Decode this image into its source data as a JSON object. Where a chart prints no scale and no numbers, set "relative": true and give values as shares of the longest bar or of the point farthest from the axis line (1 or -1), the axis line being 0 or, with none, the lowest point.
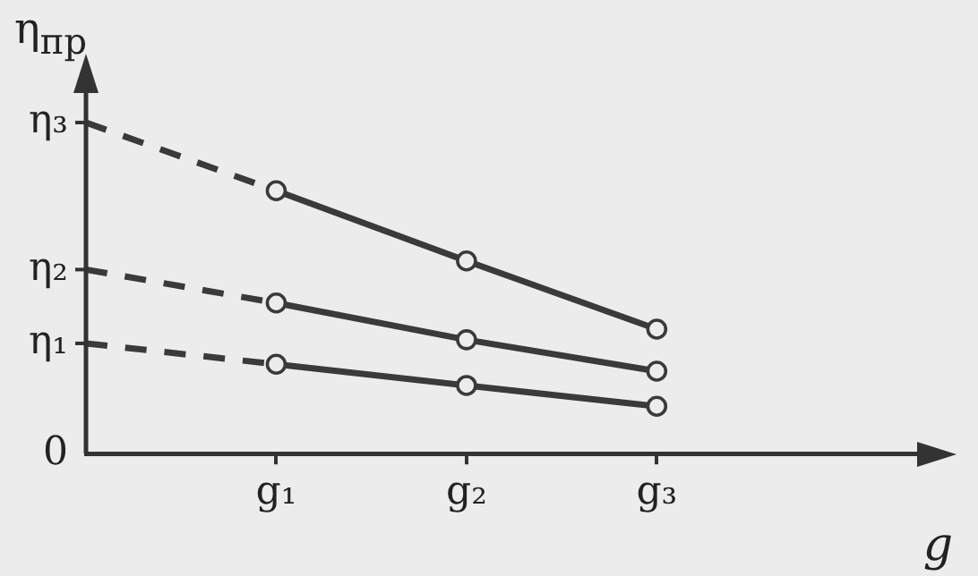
{
  "chart_data": {
    "type": "line",
    "relative": true,
    "xlabel": "g",
    "ylabel": "η$_{пр}$",
    "categories": [
      null,
      "g₁",
      "g₂",
      "g₃",
      null
    ],
    "annotations": [
      "0",
      "η₁",
      "η₂",
      "η₃"
    ],
    "grid": false,
    "legend": false,
    "series": [
      {
        "color": "#3a3a3a",
        "values": [
          null,
          0.794,
          0.582,
          0.376,
          null
        ],
        "marker": "circle",
        "line_style": "solid"
      },
      {
        "color": "#3a3a3a",
        "values": [
          null,
          0.455,
          0.344,
          0.249,
          null
        ],
        "marker": "circle",
        "line_style": "solid"
      },
      {
        "color": "#3a3a3a",
        "values": [
          null,
          0.27,
          0.206,
          0.143,
          null
        ],
        "marker": "circle",
        "line_style": "solid"
      },
      {
        "color": "#3a3a3a",
        "values": [
          1,
          0.794,
          null,
          null,
          null
        ],
        "line_style": "dashed"
      },
      {
        "color": "#3a3a3a",
        "values": [
          0.556,
          0.455,
          null,
          null,
          null
        ],
        "line_style": "dashed"
      },
      {
        "color": "#3a3a3a",
        "values": [
          0.333,
          0.27,
          null,
          null,
          null
        ],
        "line_style": "dashed"
      }
    ]
  }
}
